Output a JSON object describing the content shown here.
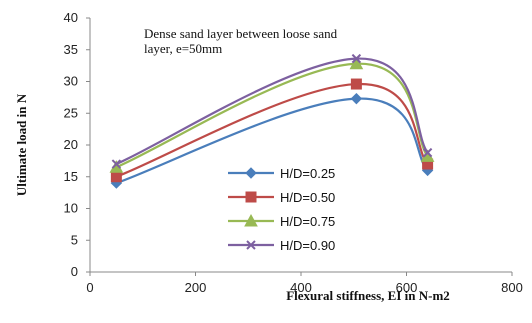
{
  "chart_data": {
    "type": "line",
    "title": "",
    "annotation_lines": [
      "Dense sand layer between loose sand",
      "layer, e=50mm"
    ],
    "xlabel": "Flexural stiffness, EI in N-m2",
    "ylabel": "Ultimate load in N",
    "xlim": [
      0,
      800
    ],
    "ylim": [
      0,
      40
    ],
    "xticks": [
      "0",
      "200",
      "400",
      "600",
      "800"
    ],
    "yticks": [
      "0",
      "5",
      "10",
      "15",
      "20",
      "25",
      "30",
      "35",
      "40"
    ],
    "grid": false,
    "legend_position": "center",
    "x": [
      50,
      505,
      640
    ],
    "series": [
      {
        "name": "H/D=0.25",
        "values": [
          14.0,
          27.3,
          16.0
        ],
        "color": "#4a7ebb",
        "marker": "diamond"
      },
      {
        "name": "H/D=0.50",
        "values": [
          15.0,
          29.6,
          17.0
        ],
        "color": "#be4b48",
        "marker": "square"
      },
      {
        "name": "H/D=0.75",
        "values": [
          16.5,
          32.8,
          18.2
        ],
        "color": "#98b954",
        "marker": "triangle"
      },
      {
        "name": "H/D=0.90",
        "values": [
          17.0,
          33.6,
          18.8
        ],
        "color": "#7d60a0",
        "marker": "x"
      }
    ]
  }
}
